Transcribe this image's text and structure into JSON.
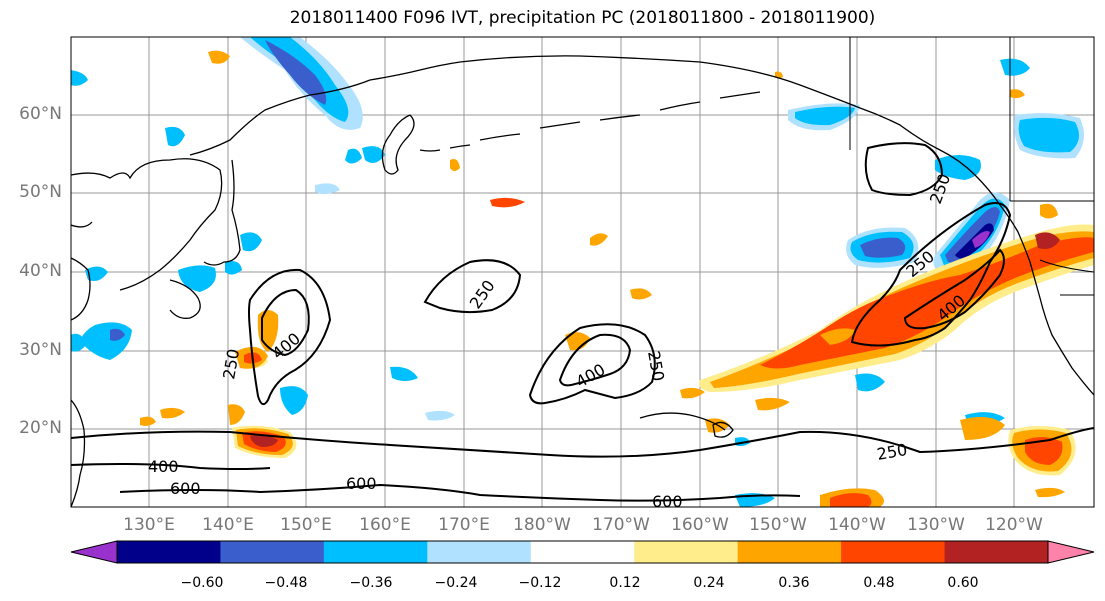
{
  "title": "2018011400 F096 IVT, precipitation PC (2018011800 - 2018011900)",
  "lat_labels": [
    "60°N",
    "50°N",
    "40°N",
    "30°N",
    "20°N"
  ],
  "lon_labels": [
    "130°E",
    "140°E",
    "150°E",
    "160°E",
    "170°E",
    "180°W",
    "170°W",
    "160°W",
    "150°W",
    "140°W",
    "130°W",
    "120°W"
  ],
  "contour_labels": [
    "250",
    "400",
    "600"
  ],
  "colorbar": {
    "ticks": [
      "−0.60",
      "−0.48",
      "−0.36",
      "−0.24",
      "−0.12",
      "0.12",
      "0.24",
      "0.36",
      "0.48",
      "0.60"
    ],
    "colors": [
      "#9932cc",
      "#00008b",
      "#3a5fcd",
      "#00bfff",
      "#b0e2ff",
      "#ffffff",
      "#ffec8b",
      "#ffa500",
      "#ff4500",
      "#b22222",
      "#ff82ab"
    ]
  }
}
